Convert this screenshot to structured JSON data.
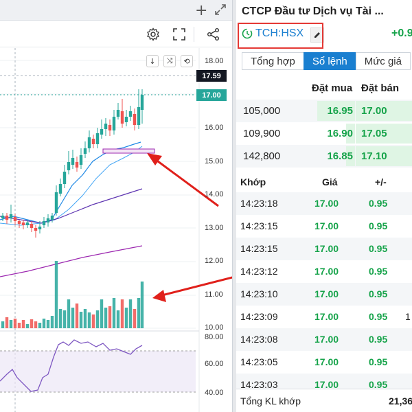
{
  "window": {
    "add_label": "+"
  },
  "chart": {
    "price_axis_ticks": [
      "18.00",
      "16.00",
      "15.00",
      "14.00",
      "13.00",
      "12.00",
      "11.00",
      "10.00"
    ],
    "last_price_tag": "17.59",
    "current_price_tag": "17.00",
    "rsi_ticks": [
      "80.00",
      "60.00",
      "40.00"
    ],
    "bull_color": "#26a69a",
    "bear_color": "#ef5350",
    "arrow_color": "#e0201b"
  },
  "instrument": {
    "company_name": "CTCP Đầu tư Dịch vụ Tài ...",
    "symbol": "TCH:HSX",
    "change": "+0.9"
  },
  "tabs": [
    {
      "label": "Tổng hợp",
      "active": false
    },
    {
      "label": "Sổ lệnh",
      "active": true
    },
    {
      "label": "Mức giá",
      "active": false
    }
  ],
  "order_book": {
    "headers": {
      "bid": "Đặt mua",
      "ask": "Đặt bán"
    },
    "rows": [
      {
        "volume": "105,000",
        "bid": "16.95",
        "ask": "17.00"
      },
      {
        "volume": "109,900",
        "bid": "16.90",
        "ask": "17.05"
      },
      {
        "volume": "142,800",
        "bid": "16.85",
        "ask": "17.10"
      }
    ]
  },
  "trades": {
    "headers": {
      "time": "Khớp",
      "price": "Giá",
      "change": "+/-"
    },
    "rows": [
      {
        "time": "14:23:18",
        "price": "17.00",
        "change": "0.95",
        "extra": ""
      },
      {
        "time": "14:23:15",
        "price": "17.00",
        "change": "0.95",
        "extra": ""
      },
      {
        "time": "14:23:15",
        "price": "17.00",
        "change": "0.95",
        "extra": ""
      },
      {
        "time": "14:23:12",
        "price": "17.00",
        "change": "0.95",
        "extra": ""
      },
      {
        "time": "14:23:10",
        "price": "17.00",
        "change": "0.95",
        "extra": ""
      },
      {
        "time": "14:23:09",
        "price": "17.00",
        "change": "0.95",
        "extra": "1"
      },
      {
        "time": "14:23:08",
        "price": "17.00",
        "change": "0.95",
        "extra": ""
      },
      {
        "time": "14:23:05",
        "price": "17.00",
        "change": "0.95",
        "extra": ""
      },
      {
        "time": "14:23:03",
        "price": "17.00",
        "change": "0.95",
        "extra": ""
      }
    ]
  },
  "footer": {
    "label": "Tổng KL khớp",
    "value": "21,36"
  }
}
